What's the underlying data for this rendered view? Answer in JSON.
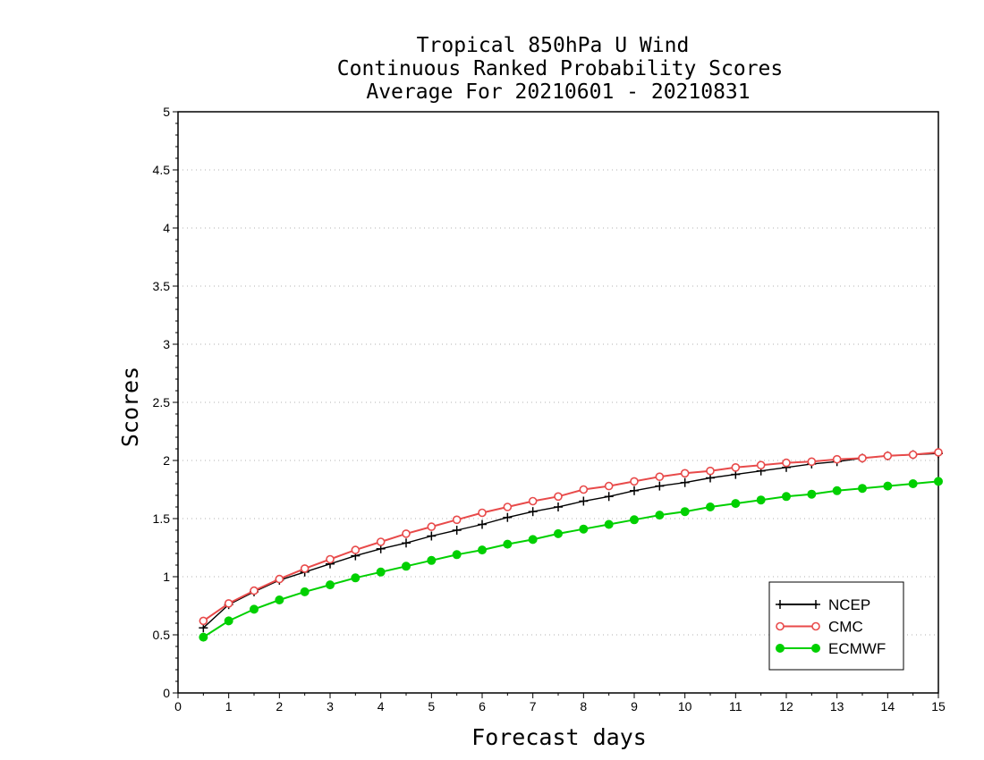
{
  "chart_data": {
    "type": "line",
    "title_lines": [
      "Tropical 850hPa U Wind",
      "Continuous Ranked Probability Scores",
      "Average For 20210601 - 20210831"
    ],
    "xlabel": "Forecast days",
    "ylabel": "Scores",
    "xlim": [
      0,
      15
    ],
    "ylim": [
      0,
      5
    ],
    "x_ticks": [
      "0",
      "1",
      "2",
      "3",
      "4",
      "5",
      "6",
      "7",
      "8",
      "9",
      "10",
      "11",
      "12",
      "13",
      "14",
      "15"
    ],
    "y_ticks": [
      "0",
      "0.5",
      "1",
      "1.5",
      "2",
      "2.5",
      "3",
      "3.5",
      "4",
      "4.5",
      "5"
    ],
    "grid": "horizontal dotted",
    "legend_position": "bottom-right",
    "x": [
      0.5,
      1,
      1.5,
      2,
      2.5,
      3,
      3.5,
      4,
      4.5,
      5,
      5.5,
      6,
      6.5,
      7,
      7.5,
      8,
      8.5,
      9,
      9.5,
      10,
      10.5,
      11,
      11.5,
      12,
      12.5,
      13,
      13.5,
      14,
      14.5,
      15
    ],
    "series": [
      {
        "name": "NCEP",
        "color": "#000000",
        "marker": "plus",
        "values": [
          0.56,
          0.76,
          0.87,
          0.97,
          1.04,
          1.11,
          1.18,
          1.24,
          1.29,
          1.35,
          1.4,
          1.45,
          1.51,
          1.56,
          1.6,
          1.65,
          1.69,
          1.74,
          1.78,
          1.81,
          1.85,
          1.88,
          1.91,
          1.94,
          1.97,
          1.99,
          2.02,
          2.04,
          2.05,
          2.06
        ]
      },
      {
        "name": "CMC",
        "color": "#e84a4a",
        "marker": "open-circle",
        "values": [
          0.62,
          0.77,
          0.88,
          0.98,
          1.07,
          1.15,
          1.23,
          1.3,
          1.37,
          1.43,
          1.49,
          1.55,
          1.6,
          1.65,
          1.69,
          1.75,
          1.78,
          1.82,
          1.86,
          1.89,
          1.91,
          1.94,
          1.96,
          1.98,
          1.99,
          2.01,
          2.02,
          2.04,
          2.05,
          2.07
        ]
      },
      {
        "name": "ECMWF",
        "color": "#00d000",
        "marker": "filled-circle",
        "values": [
          0.48,
          0.62,
          0.72,
          0.8,
          0.87,
          0.93,
          0.99,
          1.04,
          1.09,
          1.14,
          1.19,
          1.23,
          1.28,
          1.32,
          1.37,
          1.41,
          1.45,
          1.49,
          1.53,
          1.56,
          1.6,
          1.63,
          1.66,
          1.69,
          1.71,
          1.74,
          1.76,
          1.78,
          1.8,
          1.82
        ]
      }
    ]
  }
}
